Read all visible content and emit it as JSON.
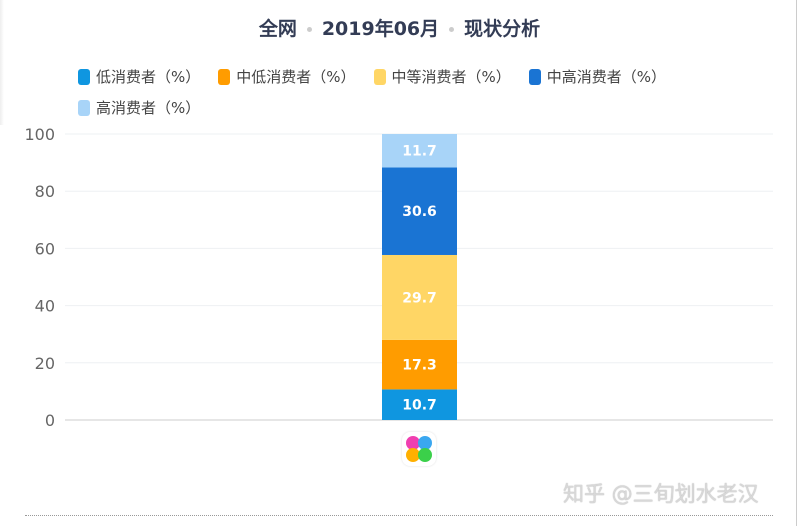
{
  "title": {
    "part1": "全网",
    "part2": "2019年06月",
    "part3": "现状分析"
  },
  "chart_data": {
    "type": "bar",
    "stacked": true,
    "categories": [
      ""
    ],
    "series": [
      {
        "name": "低消费者（%）",
        "values": [
          10.7
        ],
        "color": "#0f96e0"
      },
      {
        "name": "中低消费者（%）",
        "values": [
          17.3
        ],
        "color": "#ff9c00"
      },
      {
        "name": "中等消费者（%）",
        "values": [
          29.7
        ],
        "color": "#ffd665"
      },
      {
        "name": "中高消费者（%）",
        "values": [
          30.6
        ],
        "color": "#1a74d3"
      },
      {
        "name": "高消费者（%）",
        "values": [
          11.7
        ],
        "color": "#a8d4f8"
      }
    ],
    "ylim": [
      0,
      100
    ],
    "yticks": [
      "0",
      "20",
      "40",
      "60",
      "80",
      "100"
    ],
    "grid": true,
    "legend": "top"
  },
  "category_icon": "app-flower-icon",
  "watermark": "知乎 @三旬划水老汉"
}
